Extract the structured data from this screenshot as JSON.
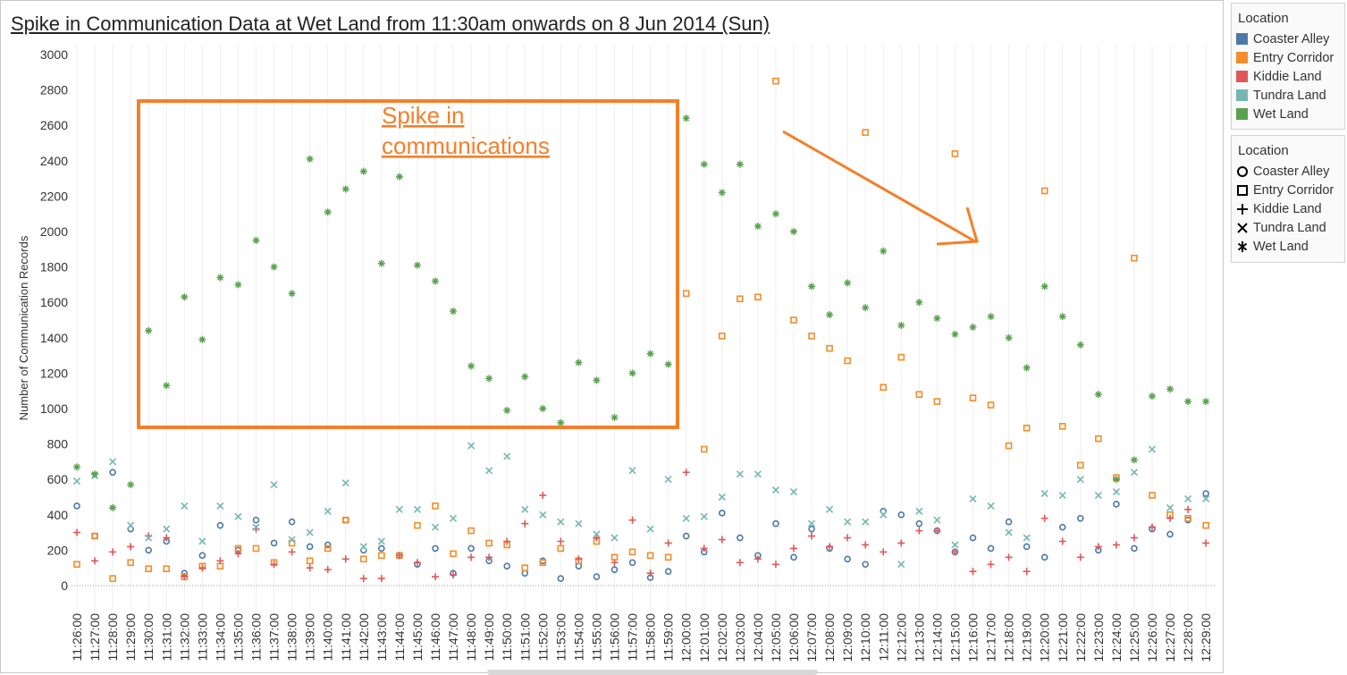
{
  "title": "Spike in Communication Data at Wet Land  from 11:30am onwards on 8 Jun 2014 (Sun)",
  "annotation": {
    "text_line1": "Spike in",
    "text_line2": "communications",
    "color": "#f47f2a"
  },
  "legend_color": {
    "title": "Location",
    "items": [
      {
        "label": "Coaster Alley",
        "color": "#4e79a7"
      },
      {
        "label": "Entry Corridor",
        "color": "#f28e2b"
      },
      {
        "label": "Kiddie Land",
        "color": "#e15759"
      },
      {
        "label": "Tundra Land",
        "color": "#76b7b2"
      },
      {
        "label": "Wet Land",
        "color": "#59a14f"
      }
    ]
  },
  "legend_shape": {
    "title": "Location",
    "items": [
      {
        "label": "Coaster Alley",
        "shape": "circle"
      },
      {
        "label": "Entry Corridor",
        "shape": "square"
      },
      {
        "label": "Kiddie Land",
        "shape": "plus"
      },
      {
        "label": "Tundra Land",
        "shape": "cross"
      },
      {
        "label": "Wet Land",
        "shape": "asterisk"
      }
    ]
  },
  "chart_data": {
    "type": "scatter",
    "title": "Spike in Communication Data at Wet Land  from 11:30am onwards on 8 Jun 2014 (Sun)",
    "xlabel": "",
    "ylabel": "Number of Communication  Records",
    "ylim": [
      0,
      3000
    ],
    "yticks": [
      0,
      200,
      400,
      600,
      800,
      1000,
      1200,
      1400,
      1600,
      1800,
      2000,
      2200,
      2400,
      2600,
      2800,
      3000
    ],
    "grid": "vertical",
    "legend_position": "right",
    "categories": [
      "11:26:00",
      "11:27:00",
      "11:28:00",
      "11:29:00",
      "11:30:00",
      "11:31:00",
      "11:32:00",
      "11:33:00",
      "11:34:00",
      "11:35:00",
      "11:36:00",
      "11:37:00",
      "11:38:00",
      "11:39:00",
      "11:40:00",
      "11:41:00",
      "11:42:00",
      "11:43:00",
      "11:44:00",
      "11:45:00",
      "11:46:00",
      "11:47:00",
      "11:48:00",
      "11:49:00",
      "11:50:00",
      "11:51:00",
      "11:52:00",
      "11:53:00",
      "11:54:00",
      "11:55:00",
      "11:56:00",
      "11:57:00",
      "11:58:00",
      "11:59:00",
      "12:00:00",
      "12:01:00",
      "12:02:00",
      "12:03:00",
      "12:04:00",
      "12:05:00",
      "12:06:00",
      "12:07:00",
      "12:08:00",
      "12:09:00",
      "12:10:00",
      "12:11:00",
      "12:12:00",
      "12:13:00",
      "12:14:00",
      "12:15:00",
      "12:16:00",
      "12:17:00",
      "12:18:00",
      "12:19:00",
      "12:20:00",
      "12:21:00",
      "12:22:00",
      "12:23:00",
      "12:24:00",
      "12:25:00",
      "12:26:00",
      "12:27:00",
      "12:28:00",
      "12:29:00"
    ],
    "series": [
      {
        "name": "Coaster Alley",
        "color": "#4e79a7",
        "shape": "circle",
        "values": [
          450,
          280,
          640,
          320,
          200,
          250,
          70,
          170,
          340,
          200,
          370,
          240,
          360,
          220,
          230,
          370,
          200,
          210,
          170,
          120,
          210,
          70,
          210,
          140,
          110,
          70,
          140,
          40,
          110,
          50,
          90,
          130,
          45,
          80,
          280,
          190,
          410,
          270,
          170,
          350,
          160,
          320,
          210,
          150,
          120,
          420,
          400,
          350,
          310,
          190,
          270,
          210,
          360,
          220,
          160,
          330,
          380,
          200,
          460,
          210,
          320,
          290,
          370,
          520
        ]
      },
      {
        "name": "Entry Corridor",
        "color": "#f28e2b",
        "shape": "square",
        "values": [
          120,
          280,
          40,
          130,
          95,
          95,
          50,
          110,
          110,
          210,
          210,
          130,
          240,
          140,
          210,
          370,
          150,
          170,
          170,
          340,
          450,
          180,
          310,
          240,
          230,
          100,
          130,
          210,
          140,
          250,
          160,
          190,
          170,
          160,
          1650,
          770,
          1410,
          1620,
          1630,
          2850,
          1500,
          1410,
          1340,
          1270,
          2560,
          1120,
          1290,
          1080,
          1040,
          2440,
          1060,
          1020,
          790,
          890,
          2230,
          900,
          680,
          830,
          610,
          1850,
          510,
          400,
          380,
          340
        ]
      },
      {
        "name": "Kiddie Land",
        "color": "#e15759",
        "shape": "plus",
        "values": [
          300,
          140,
          190,
          220,
          280,
          270,
          50,
          100,
          140,
          180,
          320,
          120,
          190,
          100,
          90,
          150,
          40,
          40,
          170,
          130,
          50,
          60,
          160,
          160,
          250,
          350,
          510,
          250,
          150,
          270,
          130,
          370,
          70,
          240,
          640,
          210,
          260,
          130,
          150,
          120,
          210,
          280,
          220,
          270,
          230,
          190,
          240,
          310,
          310,
          190,
          80,
          120,
          160,
          80,
          380,
          250,
          160,
          220,
          230,
          270,
          330,
          380,
          430,
          240
        ]
      },
      {
        "name": "Tundra Land",
        "color": "#76b7b2",
        "shape": "cross",
        "values": [
          590,
          620,
          700,
          340,
          270,
          320,
          450,
          250,
          450,
          390,
          330,
          570,
          260,
          300,
          420,
          580,
          220,
          250,
          430,
          430,
          330,
          380,
          790,
          650,
          730,
          430,
          400,
          360,
          350,
          290,
          270,
          650,
          320,
          600,
          380,
          390,
          500,
          630,
          630,
          540,
          530,
          350,
          430,
          360,
          360,
          400,
          120,
          420,
          370,
          230,
          490,
          450,
          300,
          270,
          520,
          510,
          600,
          510,
          530,
          640,
          770,
          440,
          490,
          490
        ]
      },
      {
        "name": "Wet Land",
        "color": "#59a14f",
        "shape": "asterisk",
        "values": [
          670,
          630,
          440,
          570,
          1440,
          1130,
          1630,
          1390,
          1740,
          1700,
          1950,
          1800,
          1650,
          2410,
          2110,
          2240,
          2340,
          1820,
          2310,
          1810,
          1720,
          1550,
          1240,
          1170,
          990,
          1180,
          1000,
          920,
          1260,
          1160,
          950,
          1200,
          1310,
          1250,
          2640,
          2380,
          2220,
          2380,
          2030,
          2100,
          2000,
          1690,
          1530,
          1710,
          1570,
          1890,
          1470,
          1600,
          1510,
          1420,
          1460,
          1520,
          1400,
          1230,
          1690,
          1520,
          1360,
          1080,
          600,
          710,
          1070,
          1110,
          1040,
          1040
        ]
      }
    ]
  }
}
